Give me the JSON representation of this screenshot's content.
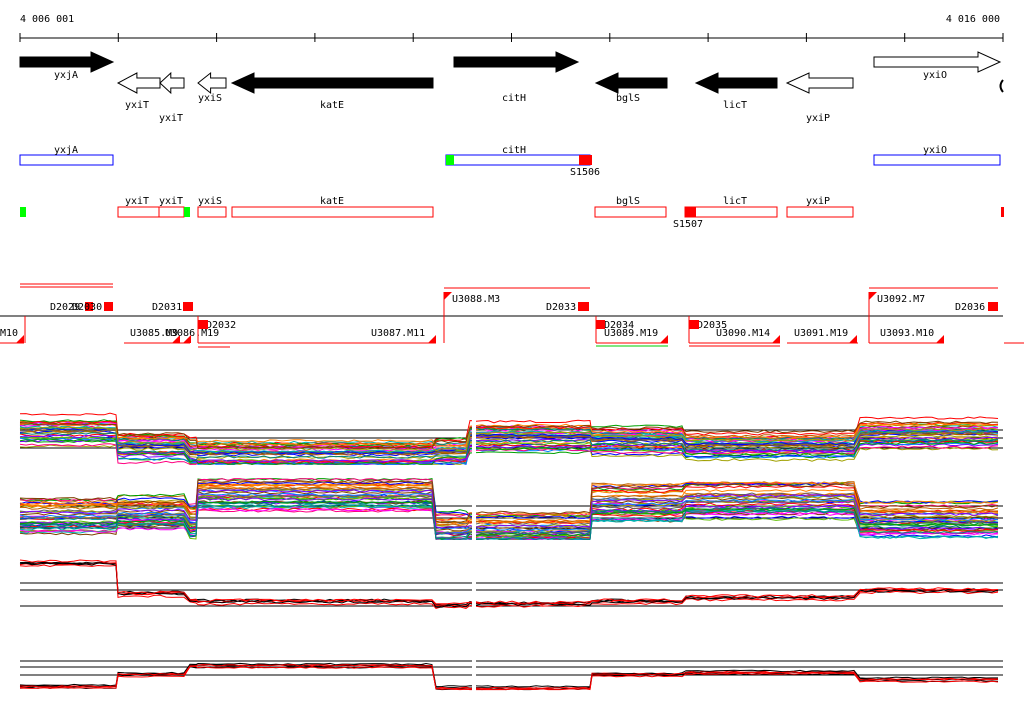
{
  "ruler": {
    "start_label": "4 006 001",
    "end_label": "4 016 000"
  },
  "genes": [
    {
      "name": "yxjA",
      "strand": "+",
      "fill": "black"
    },
    {
      "name": "yxiT",
      "strand": "-",
      "fill": "white"
    },
    {
      "name": "yxiT",
      "strand": "-",
      "fill": "white"
    },
    {
      "name": "yxiS",
      "strand": "-",
      "fill": "white"
    },
    {
      "name": "katE",
      "strand": "-",
      "fill": "black"
    },
    {
      "name": "citH",
      "strand": "+",
      "fill": "black"
    },
    {
      "name": "bglS",
      "strand": "-",
      "fill": "black"
    },
    {
      "name": "licT",
      "strand": "-",
      "fill": "black"
    },
    {
      "name": "yxiP",
      "strand": "-",
      "fill": "white"
    },
    {
      "name": "yxiO",
      "strand": "+",
      "fill": "white"
    }
  ],
  "forward_boxes": [
    {
      "name": "yxjA"
    },
    {
      "name": "citH"
    },
    {
      "name": "yxiO"
    }
  ],
  "forward_sites": [
    {
      "name": "S1506",
      "color": "#ff0000"
    }
  ],
  "reverse_boxes": [
    {
      "name": "yxiT"
    },
    {
      "name": "yxiT"
    },
    {
      "name": "yxiS"
    },
    {
      "name": "katE"
    },
    {
      "name": "bglS"
    },
    {
      "name": "licT"
    },
    {
      "name": "yxiP"
    }
  ],
  "reverse_sites": [
    {
      "name": "S1507",
      "color": "#ff0000"
    }
  ],
  "upper_features": [
    "D2029",
    "D2030",
    "D2031",
    "U3088.M3",
    "D2033",
    "U3092.M7",
    "D2036"
  ],
  "lower_features": [
    "M10",
    "U3085.M9",
    "U3086.M19",
    "D2032",
    "U3087.M11",
    "D2034",
    "U3089.M19",
    "D2035",
    "U3090.M14",
    "U3091.M19",
    "U3093.M10"
  ],
  "colors": {
    "forward": "#0000ff",
    "reverse": "#ff0000",
    "site_red": "#ff0000",
    "site_green": "#00ff00"
  },
  "expression_panels": [
    {
      "name": "panel-1",
      "style": "multicolor"
    },
    {
      "name": "panel-2",
      "style": "multicolor"
    },
    {
      "name": "panel-3",
      "style": "black-red"
    },
    {
      "name": "panel-4",
      "style": "black-red"
    }
  ]
}
